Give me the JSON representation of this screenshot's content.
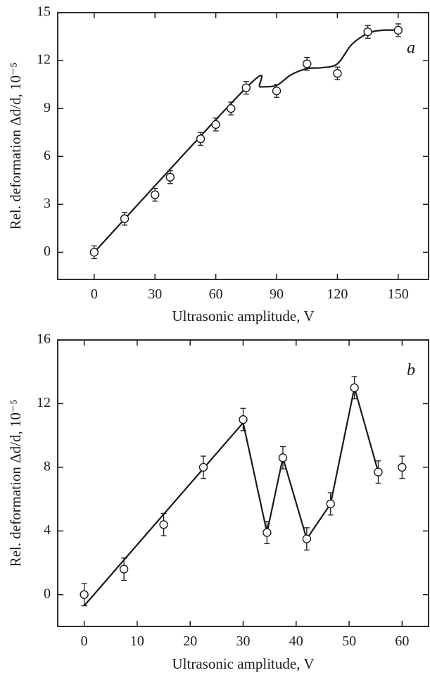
{
  "chart_data": [
    {
      "type": "scatter",
      "panel_label": "a",
      "xlabel": "Ultrasonic amplitude, V",
      "ylabel": "Rel. deformation Δd/d, 10⁻⁵",
      "xlim": [
        -18,
        165
      ],
      "ylim": [
        -1.7,
        15
      ],
      "xticks": [
        0,
        30,
        60,
        90,
        120,
        150
      ],
      "yticks": [
        0,
        3,
        6,
        9,
        12,
        15
      ],
      "grid": false,
      "series": [
        {
          "x": [
            0,
            15,
            30,
            37.5,
            52.5,
            60,
            67.5,
            75,
            90,
            105,
            120,
            135,
            150
          ],
          "y": [
            0.0,
            2.1,
            3.6,
            4.7,
            7.1,
            8.0,
            9.0,
            10.3,
            10.1,
            11.8,
            11.2,
            13.8,
            13.9
          ],
          "error": [
            0.4,
            0.4,
            0.4,
            0.4,
            0.4,
            0.4,
            0.4,
            0.4,
            0.4,
            0.4,
            0.4,
            0.4,
            0.4
          ]
        }
      ],
      "fit_curve": {
        "x": [
          0,
          75,
          82,
          90,
          97,
          105,
          112,
          120,
          127,
          135,
          142,
          150
        ],
        "y": [
          0.0,
          10.3,
          10.35,
          10.45,
          11.1,
          11.5,
          11.55,
          11.8,
          13.0,
          13.7,
          13.9,
          13.9
        ]
      }
    },
    {
      "type": "line",
      "panel_label": "b",
      "xlabel": "Ultrasonic amplitude, V",
      "ylabel": "Rel. deformation Δd/d, 10⁻⁵",
      "xlim": [
        -5,
        65
      ],
      "ylim": [
        -2,
        16
      ],
      "xticks": [
        0,
        10,
        20,
        30,
        40,
        50,
        60
      ],
      "yticks": [
        0,
        4,
        8,
        12,
        16
      ],
      "grid": false,
      "series": [
        {
          "x": [
            0,
            7.5,
            15,
            22.5,
            30,
            34.5,
            37.5,
            42,
            46.5,
            51,
            55.5,
            60
          ],
          "y": [
            0.0,
            1.6,
            4.4,
            8.0,
            11.0,
            3.9,
            8.6,
            3.5,
            5.7,
            13.0,
            7.7,
            8.0
          ],
          "error": [
            0.7,
            0.7,
            0.7,
            0.7,
            0.7,
            0.7,
            0.7,
            0.7,
            0.7,
            0.7,
            0.7,
            0.7
          ]
        }
      ],
      "fit_curve": {
        "x": [
          0,
          30,
          34.5,
          37.5,
          42,
          46.5,
          51,
          55.5
        ],
        "y": [
          -0.7,
          10.8,
          3.9,
          8.6,
          3.5,
          5.7,
          13.0,
          7.7
        ]
      }
    }
  ]
}
